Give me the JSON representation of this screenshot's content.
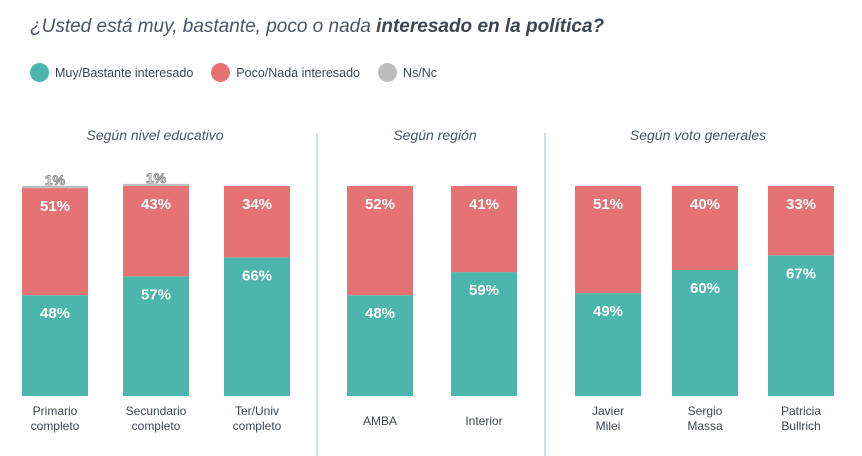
{
  "title": {
    "prefix": "¿Usted está muy, bastante, poco o nada ",
    "bold": "interesado en la política?"
  },
  "legend": [
    {
      "label": "Muy/Bastante interesado",
      "color": "#4db6ac"
    },
    {
      "label": "Poco/Nada interesado",
      "color": "#e57373"
    },
    {
      "label": "Ns/Nc",
      "color": "#bdbdbd"
    }
  ],
  "colors": {
    "interesado": "#4db6ac",
    "no_interesado": "#e57373",
    "nsnc": "#bdbdbd"
  },
  "chart_data": [
    {
      "type": "bar",
      "stacked": true,
      "title": "Según nivel educativo",
      "categories": [
        [
          "Primario",
          "completo"
        ],
        [
          "Secundario",
          "completo"
        ],
        [
          "Ter/Univ",
          "completo"
        ]
      ],
      "series": [
        {
          "name": "Muy/Bastante interesado",
          "values": [
            48,
            57,
            66
          ]
        },
        {
          "name": "Poco/Nada interesado",
          "values": [
            51,
            43,
            34
          ]
        },
        {
          "name": "Ns/Nc",
          "values": [
            1,
            1,
            0
          ]
        }
      ],
      "value_labels": [
        [
          "48%",
          "51%",
          "1%"
        ],
        [
          "57%",
          "43%",
          "1%"
        ],
        [
          "66%",
          "34%",
          null
        ]
      ],
      "ylim": [
        0,
        100
      ]
    },
    {
      "type": "bar",
      "stacked": true,
      "title": "Según región",
      "categories": [
        [
          "AMBA"
        ],
        [
          "Interior"
        ]
      ],
      "series": [
        {
          "name": "Muy/Bastante interesado",
          "values": [
            48,
            59
          ]
        },
        {
          "name": "Poco/Nada interesado",
          "values": [
            52,
            41
          ]
        },
        {
          "name": "Ns/Nc",
          "values": [
            0,
            0
          ]
        }
      ],
      "value_labels": [
        [
          "48%",
          "52%",
          null
        ],
        [
          "59%",
          "41%",
          null
        ]
      ],
      "ylim": [
        0,
        100
      ]
    },
    {
      "type": "bar",
      "stacked": true,
      "title": "Según voto generales",
      "categories": [
        [
          "Javier",
          "Milei"
        ],
        [
          "Sergio",
          "Massa"
        ],
        [
          "Patricia",
          "Bullrich"
        ]
      ],
      "series": [
        {
          "name": "Muy/Bastante interesado",
          "values": [
            49,
            60,
            67
          ]
        },
        {
          "name": "Poco/Nada interesado",
          "values": [
            51,
            40,
            33
          ]
        },
        {
          "name": "Ns/Nc",
          "values": [
            0,
            0,
            0
          ]
        }
      ],
      "value_labels": [
        [
          "49%",
          "51%",
          null
        ],
        [
          "60%",
          "40%",
          null
        ],
        [
          "67%",
          "33%",
          null
        ]
      ],
      "ylim": [
        0,
        100
      ]
    }
  ]
}
